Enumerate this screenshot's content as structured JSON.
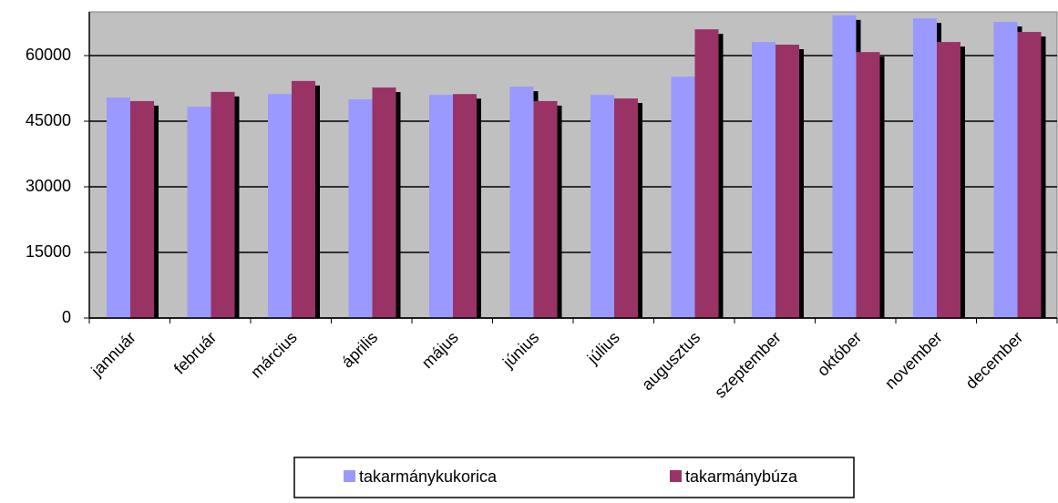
{
  "chart_data": {
    "type": "bar",
    "categories": [
      "jannuár",
      "február",
      "március",
      "április",
      "május",
      "június",
      "július",
      "augusztus",
      "szeptember",
      "október",
      "november",
      "december"
    ],
    "series": [
      {
        "name": "takarmánykukorica",
        "color": "#9999ff",
        "values": [
          50400,
          48300,
          51200,
          50000,
          51000,
          52900,
          51000,
          55200,
          63100,
          69200,
          68500,
          67700
        ]
      },
      {
        "name": "takarmánybúza",
        "color": "#993366",
        "values": [
          49600,
          51700,
          54200,
          52700,
          51200,
          49600,
          50200,
          66000,
          62500,
          60800,
          63100,
          65400
        ]
      }
    ],
    "ylim": [
      0,
      70000
    ],
    "yticks": [
      0,
      15000,
      30000,
      45000,
      60000
    ],
    "grid": true,
    "legend": "bottom"
  }
}
